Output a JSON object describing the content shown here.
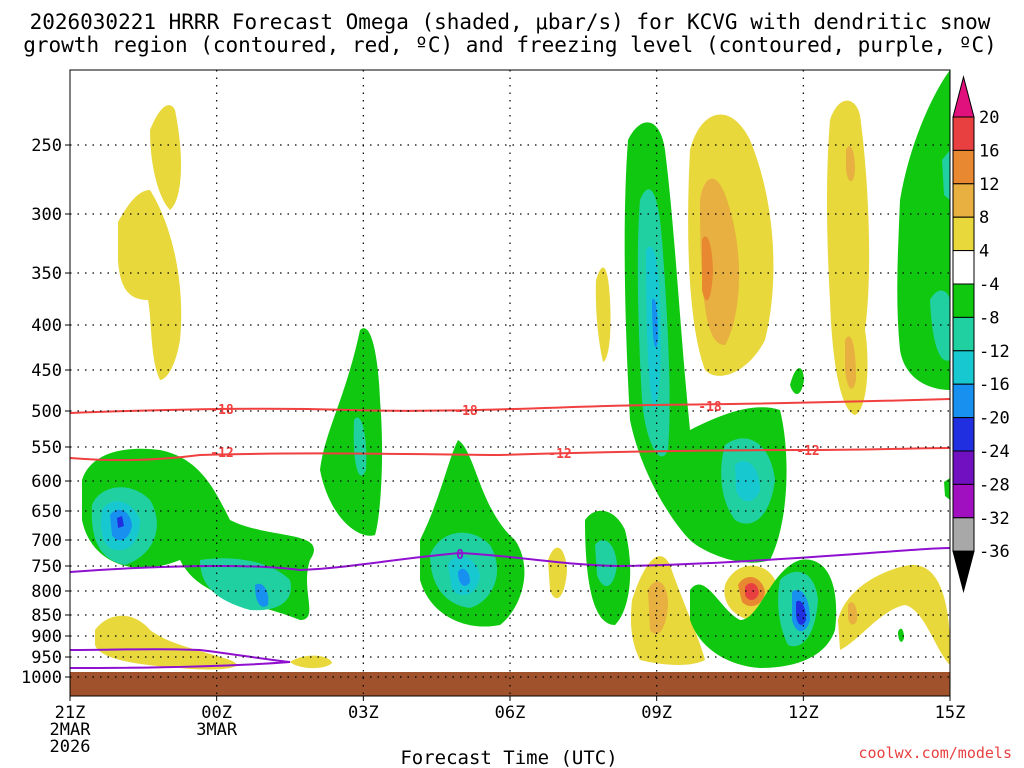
{
  "chart_data": {
    "type": "heatmap",
    "title": "2026030221 HRRR Forecast Omega (shaded, μbar/s) for KCVG with dendritic snow",
    "title_line2": "growth region (contoured, red, ºC) and freezing level (contoured, purple, ºC)",
    "xlabel": "Forecast Time (UTC)",
    "credit": "coolwx.com/models",
    "x_ticks": [
      {
        "hour": 0,
        "label": "21Z",
        "sub1": "2MAR",
        "sub2": "2026"
      },
      {
        "hour": 3,
        "label": "00Z",
        "sub1": "3MAR",
        "sub2": ""
      },
      {
        "hour": 6,
        "label": "03Z",
        "sub1": "",
        "sub2": ""
      },
      {
        "hour": 9,
        "label": "06Z",
        "sub1": "",
        "sub2": ""
      },
      {
        "hour": 12,
        "label": "09Z",
        "sub1": "",
        "sub2": ""
      },
      {
        "hour": 15,
        "label": "12Z",
        "sub1": "",
        "sub2": ""
      },
      {
        "hour": 18,
        "label": "15Z",
        "sub1": "",
        "sub2": ""
      }
    ],
    "x_range_hours": [
      0,
      18
    ],
    "y_ticks": [
      "250",
      "300",
      "350",
      "400",
      "450",
      "500",
      "550",
      "600",
      "650",
      "700",
      "750",
      "800",
      "850",
      "900",
      "950",
      "1000"
    ],
    "colorbar_labels": [
      "20",
      "16",
      "12",
      "8",
      "4",
      "-4",
      "-8",
      "-12",
      "-16",
      "-20",
      "-24",
      "-28",
      "-32",
      "-36"
    ],
    "colors": {
      "yellow": "#e8d83c",
      "orange_light": "#e8b040",
      "orange": "#e88830",
      "red": "#e84040",
      "green": "#10c810",
      "teal": "#20d0a0",
      "cyan": "#18c8d0",
      "blue": "#1890f0",
      "dblue": "#2030e0",
      "purple": "#7010c0",
      "violet": "#a010c0",
      "gray": "#a8a8a8",
      "ground": "#a0522d",
      "dgz_line": "#f04040",
      "freeze_line": "#9010d0",
      "magenta": "#e0107c"
    },
    "dgz_contours": [
      {
        "label": "-18",
        "level_hpa": 505
      },
      {
        "label": "-12",
        "level_hpa": 560
      }
    ],
    "freezing_contours": [
      {
        "label": "0",
        "level_hpa": 745
      },
      {
        "label": "",
        "level_hpa": 945
      }
    ]
  }
}
